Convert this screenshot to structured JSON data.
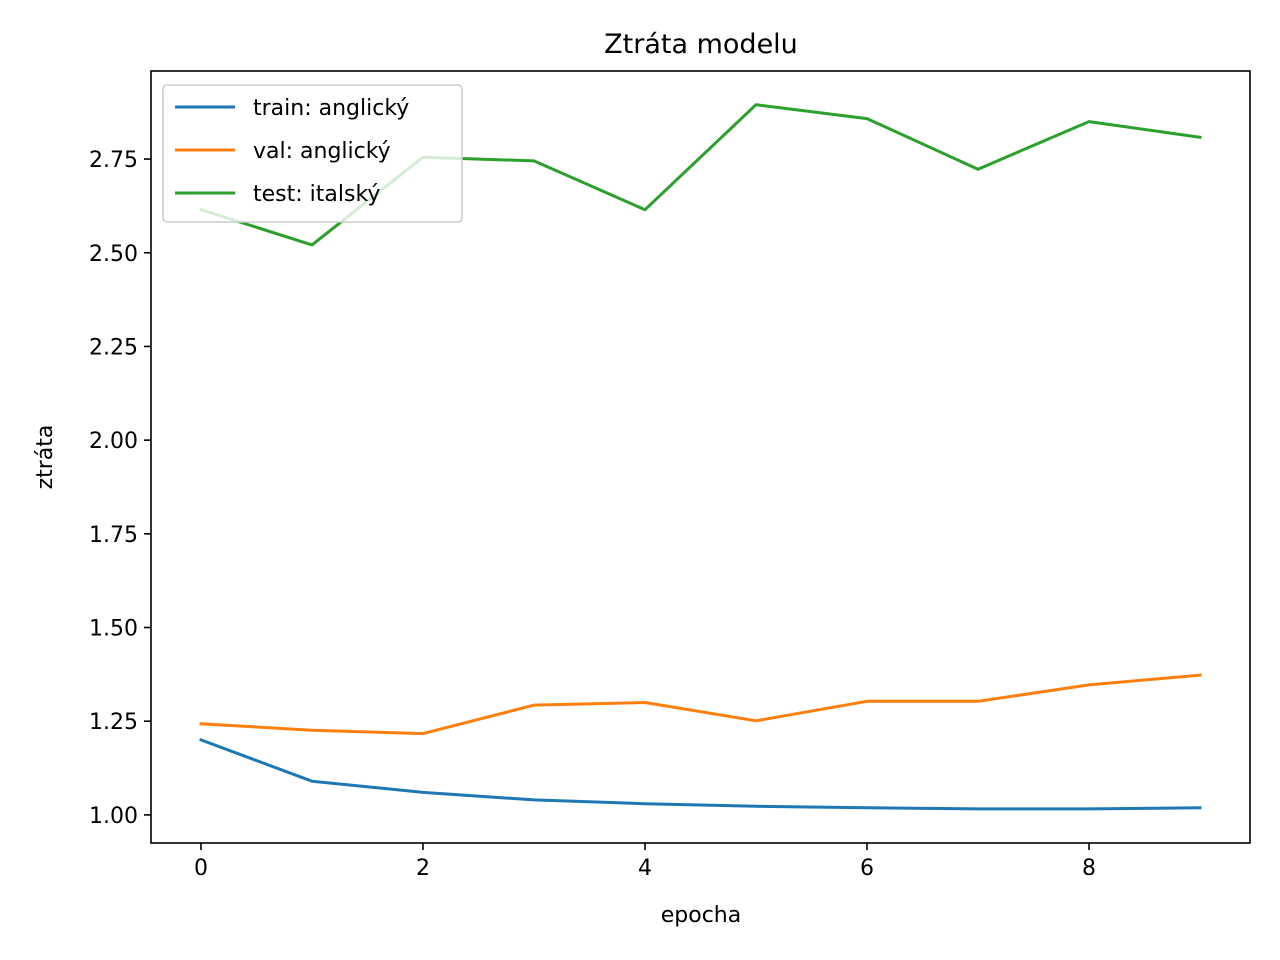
{
  "chart_data": {
    "type": "line",
    "title": "Ztráta modelu",
    "xlabel": "epocha",
    "ylabel": "ztráta",
    "x": [
      0,
      1,
      2,
      3,
      4,
      5,
      6,
      7,
      8,
      9
    ],
    "xlim": [
      -0.45,
      9.45
    ],
    "ylim": [
      0.925,
      2.985
    ],
    "xticks": [
      "0",
      "2",
      "4",
      "6",
      "8"
    ],
    "yticks": [
      "1.00",
      "1.25",
      "1.50",
      "1.75",
      "2.00",
      "2.25",
      "2.50",
      "2.75"
    ],
    "grid": false,
    "legend_position": "top-left",
    "series": [
      {
        "name": "train: anglický",
        "color": "#1f77b4",
        "values": [
          1.2,
          1.09,
          1.06,
          1.04,
          1.03,
          1.023,
          1.019,
          1.016,
          1.016,
          1.019
        ]
      },
      {
        "name": "val: anglický",
        "color": "#ff7f0e",
        "values": [
          1.243,
          1.226,
          1.217,
          1.293,
          1.3,
          1.251,
          1.303,
          1.303,
          1.347,
          1.373
        ]
      },
      {
        "name": "test: italský",
        "color": "#2ca02c",
        "values": [
          2.615,
          2.521,
          2.755,
          2.745,
          2.615,
          2.895,
          2.858,
          2.723,
          2.85,
          2.808
        ]
      }
    ]
  }
}
